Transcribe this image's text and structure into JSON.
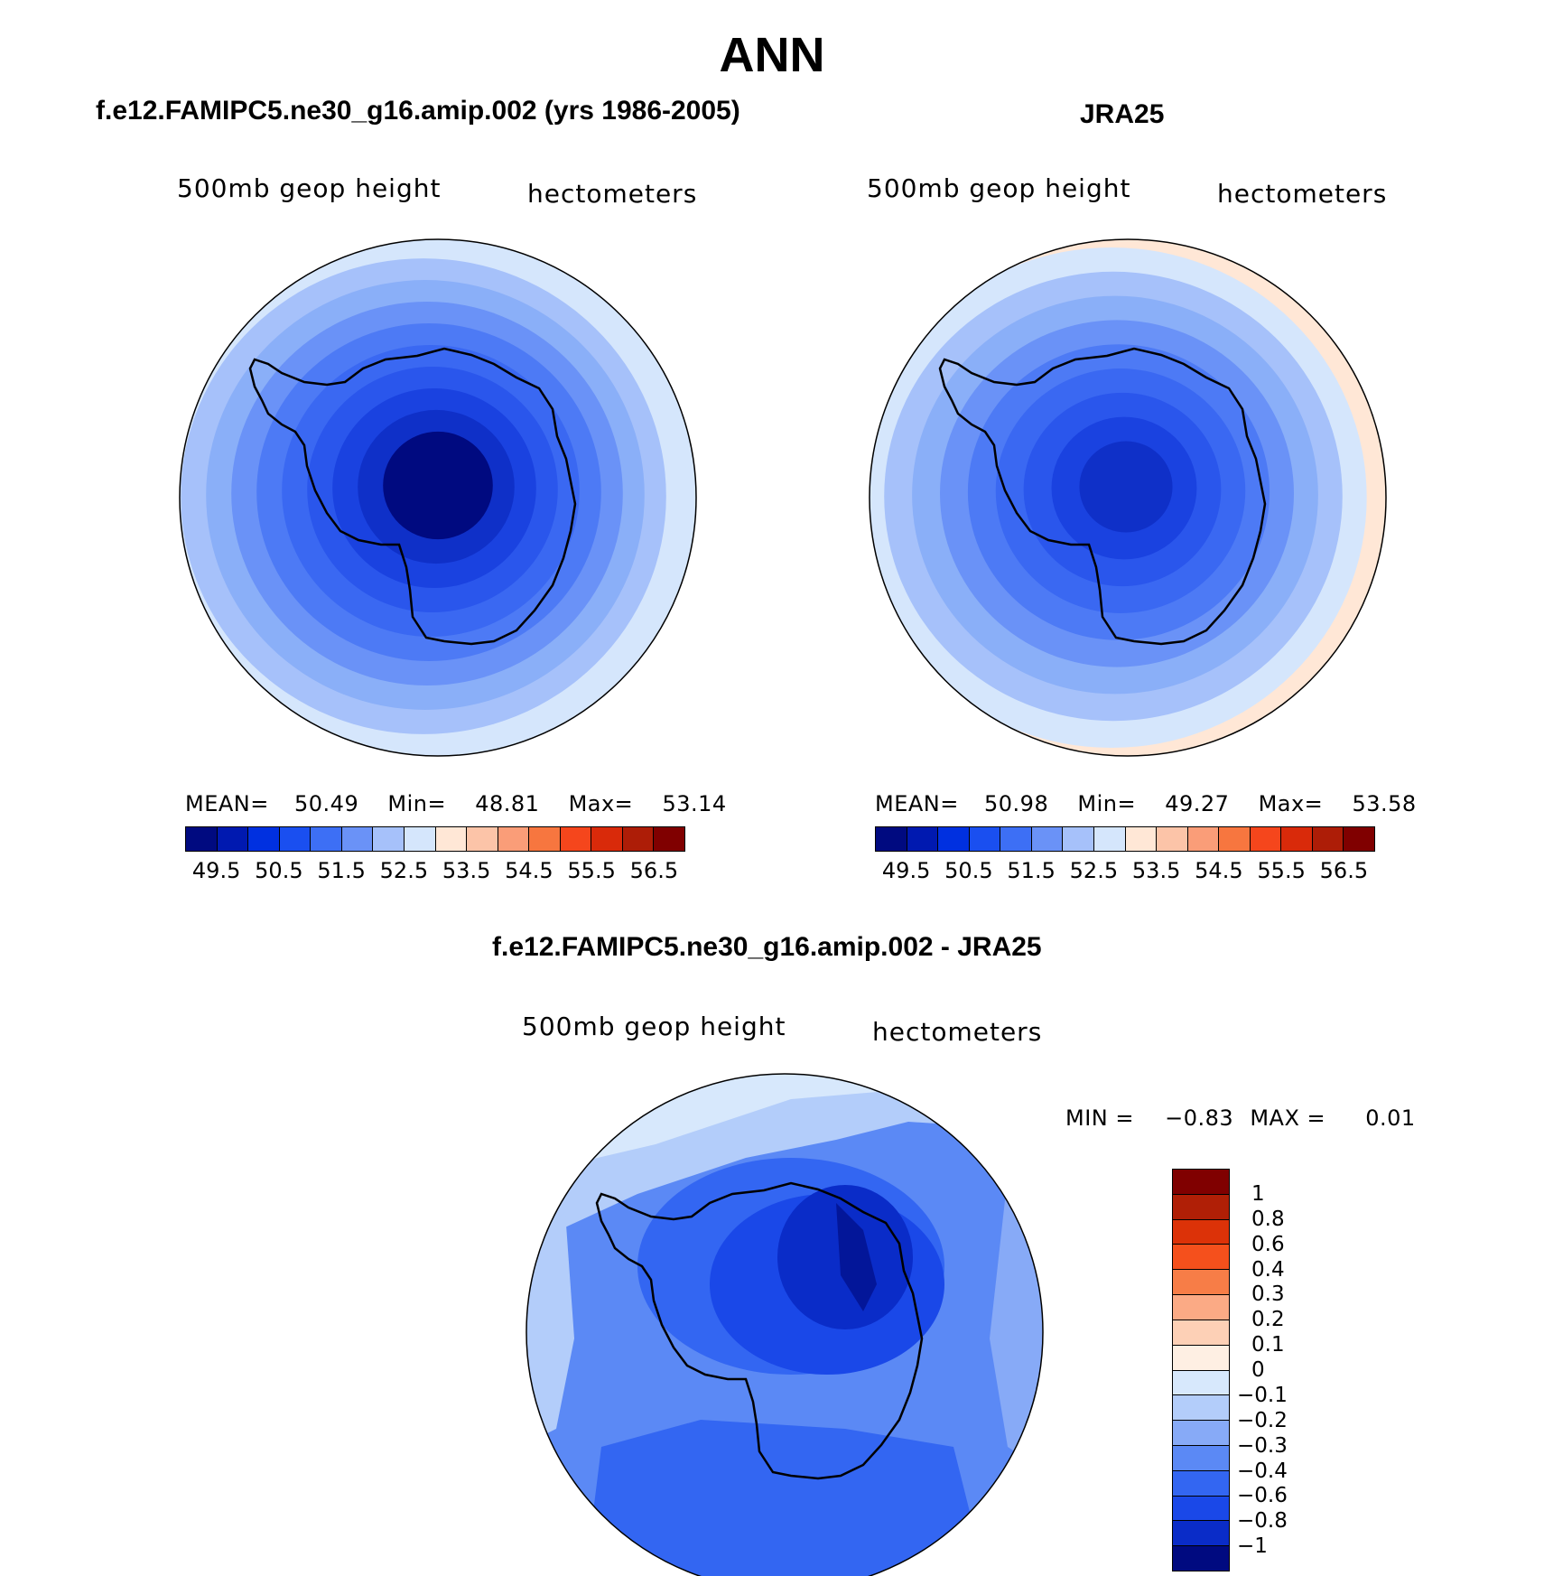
{
  "title": "ANN",
  "panels": {
    "model": {
      "title": "f.e12.FAMIPC5.ne30_g16.amip.002 (yrs 1986-2005)",
      "variable": "500mb geop height",
      "units": "hectometers",
      "stats": {
        "mean_label": "MEAN=",
        "mean": "50.49",
        "min_label": "Min=",
        "min": "48.81",
        "max_label": "Max=",
        "max": "53.14"
      }
    },
    "obs": {
      "title": "JRA25",
      "variable": "500mb geop height",
      "units": "hectometers",
      "stats": {
        "mean_label": "MEAN=",
        "mean": "50.98",
        "min_label": "Min=",
        "min": "49.27",
        "max_label": "Max=",
        "max": "53.58"
      }
    },
    "diff": {
      "title": "f.e12.FAMIPC5.ne30_g16.amip.002 - JRA25",
      "variable": "500mb geop height",
      "units": "hectometers",
      "stats": {
        "min_label": "MIN =",
        "min": "−0.83",
        "max_label": "MAX =",
        "max": "0.01"
      }
    }
  },
  "colorbar_abs": {
    "colors": [
      "#000a80",
      "#0019b0",
      "#0030e0",
      "#1a4ff0",
      "#3d6ff5",
      "#6a92f7",
      "#a6c1fa",
      "#d5e6fc",
      "#ffe7d6",
      "#fcc4a8",
      "#fa9d78",
      "#f7763f",
      "#f5461c",
      "#d92a0a",
      "#ad1d07",
      "#800000"
    ],
    "labels": [
      "49.5",
      "50.5",
      "51.5",
      "52.5",
      "53.5",
      "54.5",
      "55.5",
      "56.5"
    ]
  },
  "colorbar_diff": {
    "colors": [
      "#800000",
      "#b01f06",
      "#dc3208",
      "#f5501c",
      "#f77d47",
      "#fbaa85",
      "#fdd0b6",
      "#feefe3",
      "#d7e8fc",
      "#b3cdfa",
      "#87aaf7",
      "#5b89f5",
      "#3366f2",
      "#1a48e8",
      "#0a2cc8",
      "#000a80"
    ],
    "labels": [
      "1",
      "0.8",
      "0.6",
      "0.4",
      "0.3",
      "0.2",
      "0.1",
      "0",
      "−0.1",
      "−0.2",
      "−0.3",
      "−0.4",
      "−0.6",
      "−0.8",
      "−1"
    ]
  },
  "map_colors": {
    "ring": [
      "#d5e6fc",
      "#a6c1fa",
      "#8aaff8",
      "#6a92f7",
      "#4d7af5",
      "#3a68f2",
      "#2a56ec",
      "#1a42e0",
      "#0f30c8",
      "#000a80"
    ],
    "obs_outer": "#ffe7d6",
    "diff_fill": "#3366f2",
    "coast": "#000000"
  }
}
